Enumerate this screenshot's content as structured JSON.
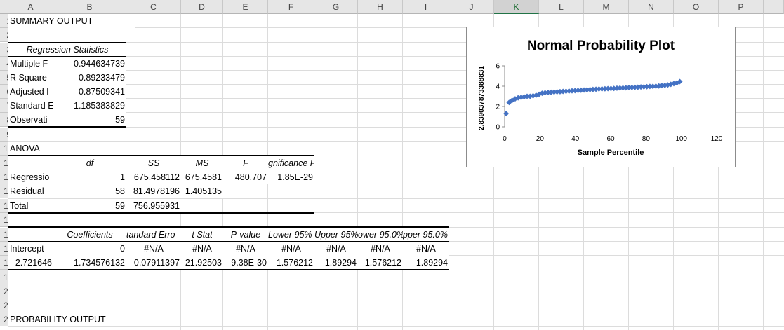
{
  "sheet": {
    "columns": [
      "A",
      "B",
      "C",
      "D",
      "E",
      "F",
      "G",
      "H",
      "I",
      "J",
      "K",
      "L",
      "M",
      "N",
      "O",
      "P"
    ],
    "selected_column": "K",
    "row_numbers": [
      "1",
      "2",
      "3",
      "4",
      "5",
      "6",
      "7",
      "8",
      "9",
      "10",
      "11",
      "12",
      "13",
      "14",
      "15",
      "16",
      "17",
      "18",
      "19",
      "20",
      "21",
      "22"
    ]
  },
  "summary": {
    "title": "SUMMARY OUTPUT",
    "reg_stats_header": "Regression Statistics",
    "stats": [
      {
        "label": "Multiple F",
        "value": "0.944634739"
      },
      {
        "label": "R Square",
        "value": "0.89233479"
      },
      {
        "label": "Adjusted I",
        "value": "0.87509341"
      },
      {
        "label": "Standard E",
        "value": "1.185383829"
      },
      {
        "label": "Observati",
        "value": "59"
      }
    ]
  },
  "anova": {
    "title": "ANOVA",
    "headers": [
      "df",
      "SS",
      "MS",
      "F",
      "gnificance F"
    ],
    "rows": [
      {
        "label": "Regressio",
        "df": "1",
        "ss": "675.458112",
        "ms": "675.4581",
        "f": "480.707",
        "sig": "1.85E-29"
      },
      {
        "label": "Residual",
        "df": "58",
        "ss": "81.4978196",
        "ms": "1.405135",
        "f": "",
        "sig": ""
      },
      {
        "label": "Total",
        "df": "59",
        "ss": "756.955931",
        "ms": "",
        "f": "",
        "sig": ""
      }
    ]
  },
  "coef": {
    "headers": [
      "Coefficients",
      "tandard Erro",
      "t Stat",
      "P-value",
      "Lower 95%",
      "Upper 95%",
      "ower 95.0%",
      "pper 95.0%"
    ],
    "rows": [
      {
        "label": "Intercept",
        "vals": [
          "0",
          "#N/A",
          "#N/A",
          "#N/A",
          "#N/A",
          "#N/A",
          "#N/A",
          "#N/A"
        ]
      },
      {
        "label": "2.721646",
        "vals": [
          "1.734576132",
          "0.07911397",
          "21.92503",
          "9.38E-30",
          "1.576212",
          "1.89294",
          "1.576212",
          "1.89294"
        ]
      }
    ]
  },
  "probability": {
    "title": "PROBABILITY OUTPUT"
  },
  "chart_data": {
    "type": "scatter",
    "title": "Normal Probability Plot",
    "xlabel": "Sample Percentile",
    "ylabel": "2.839037873388831",
    "xlim": [
      0,
      120
    ],
    "ylim": [
      0,
      6
    ],
    "xticks": [
      "0",
      "20",
      "40",
      "60",
      "80",
      "100",
      "120"
    ],
    "yticks": [
      "0",
      "2",
      "4",
      "6"
    ],
    "grid": false,
    "marker_color": "#4472c4",
    "series": [
      {
        "x": [
          0.85,
          2.54,
          4.24,
          5.93,
          7.63,
          9.32,
          11.02,
          12.71,
          14.41,
          16.1,
          17.8,
          19.49,
          21.19,
          22.88,
          24.58,
          26.27,
          27.97,
          29.66,
          31.36,
          33.05,
          34.75,
          36.44,
          38.14,
          39.83,
          41.53,
          43.22,
          44.92,
          46.61,
          48.31,
          50.0,
          51.69,
          53.39,
          55.08,
          56.78,
          58.47,
          60.17,
          61.86,
          63.56,
          65.25,
          66.95,
          68.64,
          70.34,
          72.03,
          73.73,
          75.42,
          77.12,
          78.81,
          80.51,
          82.2,
          83.9,
          85.59,
          87.29,
          88.98,
          90.68,
          92.37,
          94.07,
          95.76,
          97.46,
          99.15
        ],
        "y": [
          1.3,
          2.4,
          2.6,
          2.75,
          2.85,
          2.9,
          2.95,
          3.0,
          3.0,
          3.05,
          3.1,
          3.2,
          3.3,
          3.35,
          3.38,
          3.4,
          3.42,
          3.44,
          3.46,
          3.48,
          3.5,
          3.52,
          3.54,
          3.56,
          3.58,
          3.6,
          3.62,
          3.64,
          3.66,
          3.68,
          3.7,
          3.72,
          3.73,
          3.74,
          3.76,
          3.77,
          3.78,
          3.8,
          3.82,
          3.83,
          3.84,
          3.86,
          3.87,
          3.88,
          3.9,
          3.92,
          3.93,
          3.95,
          3.97,
          3.98,
          4.0,
          4.02,
          4.05,
          4.08,
          4.12,
          4.18,
          4.25,
          4.32,
          4.45
        ]
      }
    ]
  }
}
